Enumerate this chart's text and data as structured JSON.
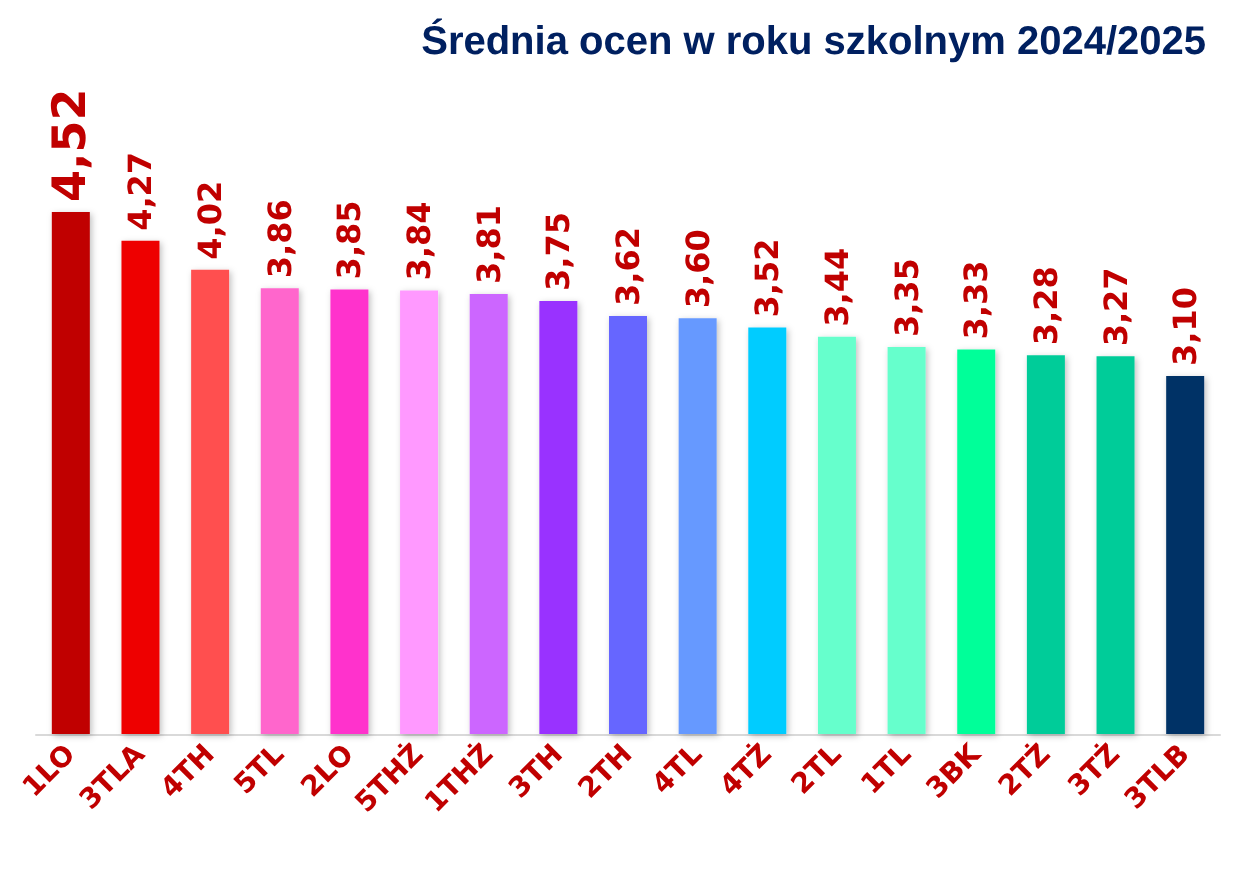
{
  "chart_data": {
    "type": "bar",
    "title": "Średnia ocen w roku szkolnym 2024/2025",
    "categories": [
      "1LO",
      "3TLA",
      "4TH",
      "5TL",
      "2LO",
      "5THŻ",
      "1THŻ",
      "3TH",
      "2TH",
      "4TL",
      "4TŻ",
      "2TL",
      "1TL",
      "3BK",
      "2TŻ",
      "3TŻ",
      "3TLB"
    ],
    "values": [
      4.52,
      4.27,
      4.02,
      3.86,
      3.85,
      3.84,
      3.81,
      3.75,
      3.62,
      3.6,
      3.52,
      3.44,
      3.35,
      3.33,
      3.28,
      3.27,
      3.1
    ],
    "value_labels": [
      "4,52",
      "4,27",
      "4,02",
      "3,86",
      "3,85",
      "3,84",
      "3,81",
      "3,75",
      "3,62",
      "3,60",
      "3,52",
      "3,44",
      "3,35",
      "3,33",
      "3,28",
      "3,27",
      "3,10"
    ],
    "colors": [
      "#c00000",
      "#ee0000",
      "#ff5050",
      "#ff66cc",
      "#ff33cc",
      "#ff99ff",
      "#cc66ff",
      "#9933ff",
      "#6666ff",
      "#6699ff",
      "#00ccff",
      "#66ffcc",
      "#66ffcc",
      "#00ff99",
      "#00cc99",
      "#00cc99",
      "#003366"
    ],
    "tick_labels": "x",
    "grid": false
  }
}
